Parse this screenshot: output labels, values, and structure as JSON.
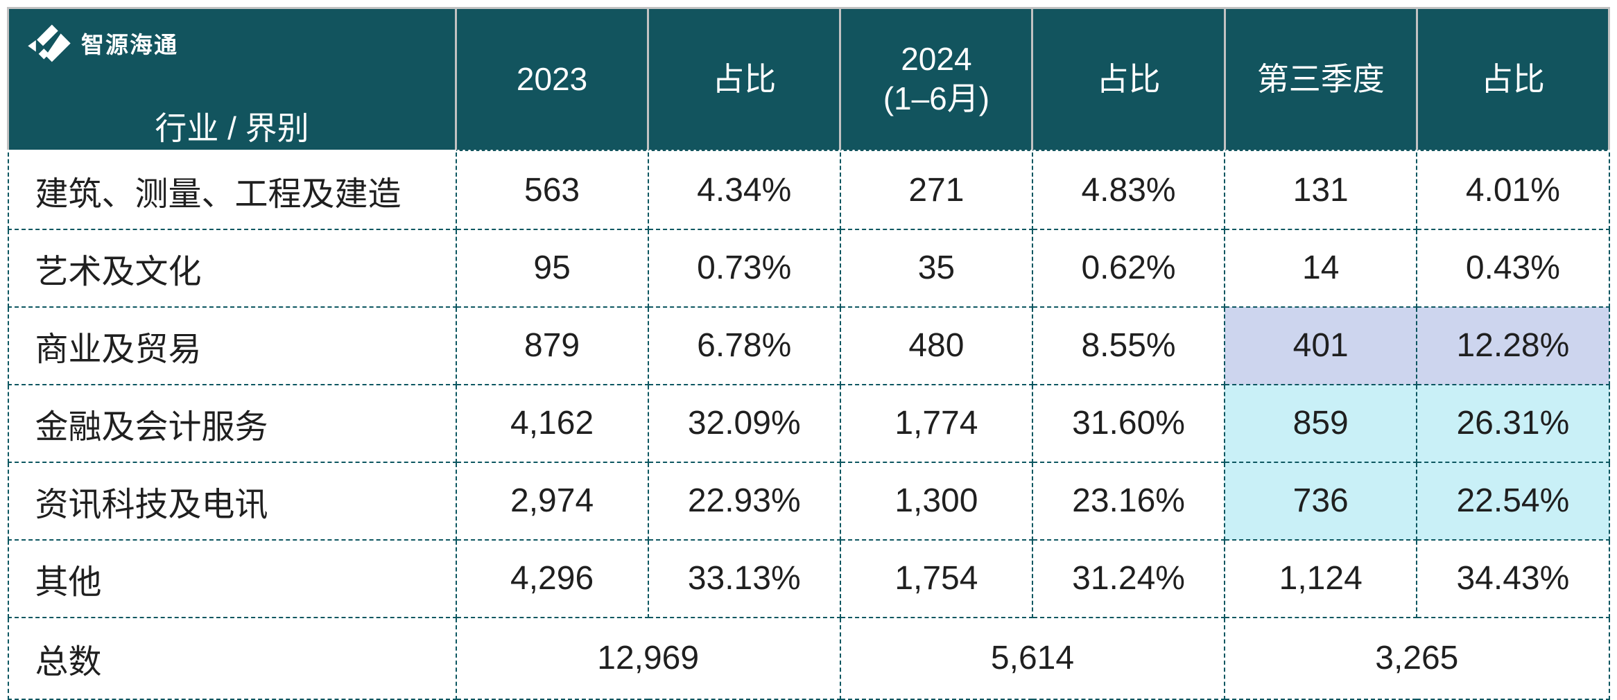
{
  "brand": {
    "name": "智源海通"
  },
  "colors": {
    "header_background": "#12545e",
    "table_border": "#0c5660",
    "highlight_purple": "#cdd5ee",
    "highlight_cyan": "#c9f0f7",
    "header_text": "#ffffff",
    "body_text": "#1f1f1f"
  },
  "chart_data": {
    "type": "table",
    "columns": [
      "行业 / 界别",
      "2023",
      "占比",
      "2024\n(1–6月)",
      "占比",
      "第三季度",
      "占比"
    ],
    "rows": [
      {
        "label": "建筑、测量、工程及建造",
        "values": [
          "563",
          "4.34%",
          "271",
          "4.83%",
          "131",
          "4.01%"
        ],
        "q3_highlight": null
      },
      {
        "label": "艺术及文化",
        "values": [
          "95",
          "0.73%",
          "35",
          "0.62%",
          "14",
          "0.43%"
        ],
        "q3_highlight": null
      },
      {
        "label": "商业及贸易",
        "values": [
          "879",
          "6.78%",
          "480",
          "8.55%",
          "401",
          "12.28%"
        ],
        "q3_highlight": "purple"
      },
      {
        "label": "金融及会计服务",
        "values": [
          "4,162",
          "32.09%",
          "1,774",
          "31.60%",
          "859",
          "26.31%"
        ],
        "q3_highlight": "cyan"
      },
      {
        "label": "资讯科技及电讯",
        "values": [
          "2,974",
          "22.93%",
          "1,300",
          "23.16%",
          "736",
          "22.54%"
        ],
        "q3_highlight": "cyan"
      },
      {
        "label": "其他",
        "values": [
          "4,296",
          "33.13%",
          "1,754",
          "31.24%",
          "1,124",
          "34.43%"
        ],
        "q3_highlight": null
      }
    ],
    "total_row": {
      "label": "总数",
      "values": [
        "12,969",
        "5,614",
        "3,265"
      ]
    }
  }
}
